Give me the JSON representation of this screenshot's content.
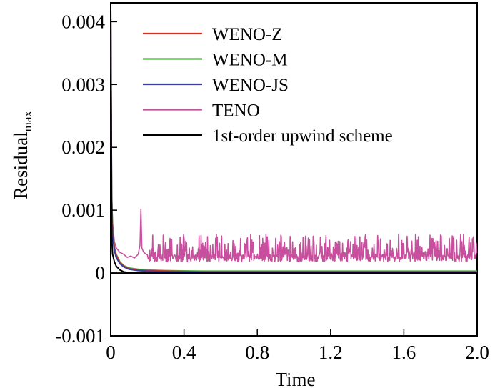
{
  "chart_data": {
    "type": "line",
    "xlabel": "Time",
    "ylabel": "Residual",
    "ylabel_subscript": "max",
    "xlim": [
      0,
      2.0
    ],
    "ylim": [
      -0.001,
      0.0043
    ],
    "grid": false,
    "legend_position": "top-right",
    "x_ticks": [
      {
        "value": 0,
        "label": "0"
      },
      {
        "value": 0.4,
        "label": "0.4"
      },
      {
        "value": 0.8,
        "label": "0.8"
      },
      {
        "value": 1.2,
        "label": "1.2"
      },
      {
        "value": 1.6,
        "label": "1.6"
      },
      {
        "value": 2.0,
        "label": "2.0"
      }
    ],
    "y_ticks": [
      {
        "value": -0.001,
        "label": "-0.001"
      },
      {
        "value": 0,
        "label": "0"
      },
      {
        "value": 0.001,
        "label": "0.001"
      },
      {
        "value": 0.002,
        "label": "0.002"
      },
      {
        "value": 0.003,
        "label": "0.003"
      },
      {
        "value": 0.004,
        "label": "0.004"
      }
    ],
    "series": [
      {
        "name": "WENO-Z",
        "color": "#d62f1e",
        "x": [
          0,
          0.005,
          0.01,
          0.02,
          0.03,
          0.05,
          0.07,
          0.1,
          0.15,
          0.2,
          0.3,
          0.5,
          1.0,
          1.5,
          2.0
        ],
        "y": [
          0.0042,
          0.0012,
          0.00065,
          0.0004,
          0.00028,
          0.00017,
          0.00011,
          7e-05,
          5e-05,
          4e-05,
          3e-05,
          2e-05,
          2e-05,
          2e-05,
          2e-05
        ]
      },
      {
        "name": "WENO-M",
        "color": "#4aad3c",
        "x": [
          0,
          0.005,
          0.01,
          0.02,
          0.03,
          0.05,
          0.07,
          0.1,
          0.15,
          0.2,
          0.3,
          0.5,
          1.0,
          1.5,
          2.0
        ],
        "y": [
          0.0042,
          0.0013,
          0.0007,
          0.00042,
          0.0003,
          0.00018,
          0.00012,
          8e-05,
          6e-05,
          5e-05,
          4e-05,
          3e-05,
          3e-05,
          3e-05,
          3e-05
        ]
      },
      {
        "name": "WENO-JS",
        "color": "#3b3e9a",
        "x": [
          0,
          0.005,
          0.01,
          0.02,
          0.03,
          0.05,
          0.07,
          0.1,
          0.15,
          0.2,
          0.3,
          0.5,
          1.0,
          1.5,
          2.0
        ],
        "y": [
          0.0042,
          0.0011,
          0.0006,
          0.00036,
          0.00025,
          0.00015,
          0.0001,
          6e-05,
          4e-05,
          3e-05,
          2e-05,
          1e-05,
          1e-05,
          1e-05,
          1e-05
        ]
      },
      {
        "name": "TENO",
        "color": "#c84f9e",
        "x": [
          0,
          0.005,
          0.01,
          0.02,
          0.03,
          0.05,
          0.07,
          0.09,
          0.11,
          0.13,
          0.15,
          0.16,
          0.165,
          0.17,
          0.18,
          0.2,
          0.25,
          0.3,
          0.4,
          0.6,
          0.8,
          1.0,
          1.2,
          1.4,
          1.6,
          1.8,
          2.0
        ],
        "y": [
          0.0042,
          0.0013,
          0.0008,
          0.0005,
          0.0004,
          0.00033,
          0.0003,
          0.00025,
          0.00027,
          0.00024,
          0.0003,
          0.00045,
          0.00102,
          0.0004,
          0.00033,
          0.00029,
          0.00031,
          0.00028,
          0.00031,
          0.00029,
          0.00032,
          0.00029,
          0.00031,
          0.00033,
          0.0003,
          0.00032,
          0.00031
        ],
        "noise_band": [
          0.00018,
          0.00062
        ]
      },
      {
        "name": "1st-order upwind scheme",
        "color": "#000000",
        "x": [
          0,
          0.005,
          0.01,
          0.02,
          0.03,
          0.05,
          0.07,
          0.1,
          0.15,
          0.2,
          0.3,
          0.5,
          1.0,
          1.5,
          2.0
        ],
        "y": [
          0.0042,
          0.0006,
          0.0003,
          0.00018,
          0.00011,
          5e-05,
          2e-05,
          5e-06,
          0,
          0,
          0,
          0,
          0,
          0,
          0
        ]
      }
    ],
    "zero_line": 0
  }
}
